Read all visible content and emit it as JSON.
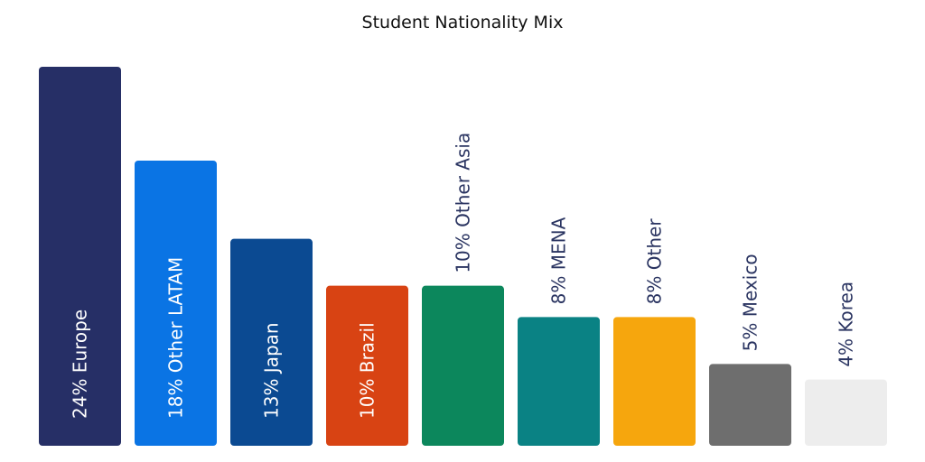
{
  "chart_data": {
    "type": "bar",
    "title": "Student Nationality Mix",
    "categories": [
      "Europe",
      "Other LATAM",
      "Japan",
      "Brazil",
      "Other Asia",
      "MENA",
      "Other",
      "Mexico",
      "Korea"
    ],
    "values": [
      24,
      18,
      13,
      10,
      10,
      8,
      8,
      5,
      4
    ],
    "bar_labels": [
      "24% Europe",
      "18% Other LATAM",
      "13% Japan",
      "10% Brazil",
      "10% Other Asia",
      "8% MENA",
      "8% Other",
      "5% Mexico",
      "4% Korea"
    ],
    "colors": [
      "#262F66",
      "#0A74E4",
      "#0B4A92",
      "#D84313",
      "#0C875C",
      "#0A8284",
      "#F6A60D",
      "#6E6E6E",
      "#EDEDED"
    ],
    "label_colors": [
      "#ffffff",
      "#ffffff",
      "#ffffff",
      "#ffffff",
      "#2A3461",
      "#2A3461",
      "#2A3461",
      "#2A3461",
      "#2A3461"
    ],
    "label_inside": [
      true,
      true,
      true,
      true,
      false,
      false,
      false,
      false,
      false
    ],
    "ylim": [
      0,
      24
    ],
    "grid": false,
    "legend": "none",
    "xlabel": "",
    "ylabel": ""
  }
}
